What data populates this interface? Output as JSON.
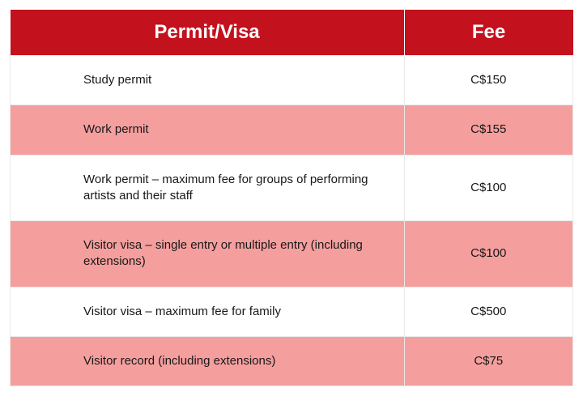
{
  "table": {
    "header_bg": "#c3111d",
    "header_text_color": "#ffffff",
    "alt_row_bg": "#f59e9e",
    "row_bg": "#ffffff",
    "border_color": "#e9e9e9",
    "text_color": "#181818",
    "header_fontsize": 24,
    "body_fontsize": 15,
    "columns": [
      {
        "label": "Permit/Visa",
        "width_pct": 70
      },
      {
        "label": "Fee",
        "width_pct": 30
      }
    ],
    "rows": [
      {
        "permit": "Study permit",
        "fee": "C$150"
      },
      {
        "permit": "Work permit",
        "fee": "C$155"
      },
      {
        "permit": "Work permit – maximum fee for groups of performing artists and their staff",
        "fee": "C$100"
      },
      {
        "permit": "Visitor visa – single entry or multiple entry (including extensions)",
        "fee": "C$100"
      },
      {
        "permit": "Visitor visa – maximum fee for family",
        "fee": "C$500"
      },
      {
        "permit": "Visitor record (including extensions)",
        "fee": "C$75"
      }
    ]
  }
}
